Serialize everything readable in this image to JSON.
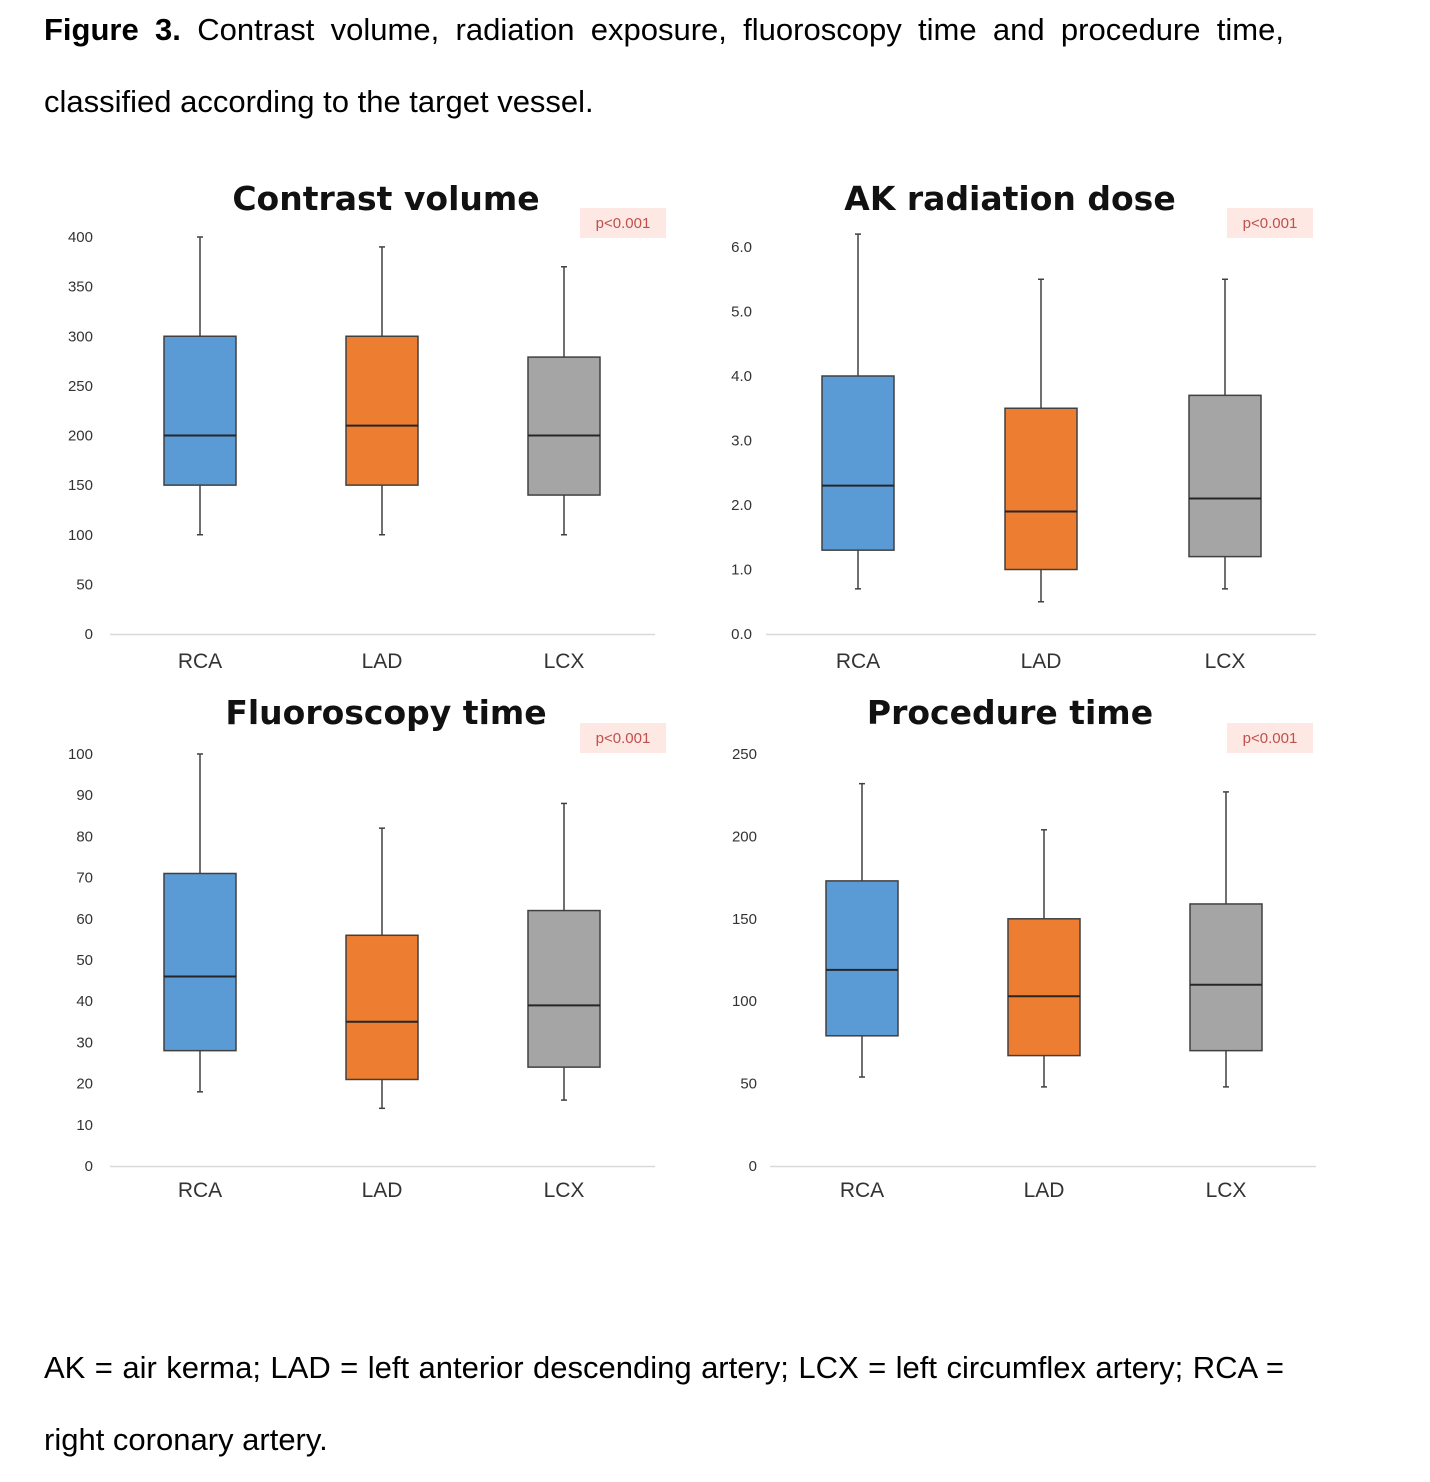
{
  "caption": {
    "label": "Figure 3.",
    "text": "Contrast volume, radiation exposure, fluoroscopy time and procedure time, classified according to the target vessel."
  },
  "footnote": "AK = air kerma; LAD = left anterior descending artery; LCX = left circumflex artery; RCA = right coronary artery.",
  "colors": {
    "RCA": "#5b9bd5",
    "LAD": "#ed7d31",
    "LCX": "#a5a5a5",
    "pbadge_bg": "#fde8e3",
    "pbadge_text": "#c0504d"
  },
  "chart_data": [
    {
      "type": "boxplot",
      "title": "Contrast volume",
      "p_value": "p<0.001",
      "categories": [
        "RCA",
        "LAD",
        "LCX"
      ],
      "ylim": [
        0,
        400
      ],
      "ticks": [
        "0",
        "50",
        "100",
        "150",
        "200",
        "250",
        "300",
        "350",
        "400"
      ],
      "boxes": [
        {
          "min": 100,
          "q1": 150,
          "median": 200,
          "q3": 300,
          "max": 400
        },
        {
          "min": 100,
          "q1": 150,
          "median": 210,
          "q3": 300,
          "max": 390
        },
        {
          "min": 100,
          "q1": 140,
          "median": 200,
          "q3": 279,
          "max": 370
        }
      ]
    },
    {
      "type": "boxplot",
      "title": "AK radiation dose",
      "p_value": "p<0.001",
      "categories": [
        "RCA",
        "LAD",
        "LCX"
      ],
      "ylim": [
        0,
        6
      ],
      "ticks": [
        "0.0",
        "1.0",
        "2.0",
        "3.0",
        "4.0",
        "5.0",
        "6.0"
      ],
      "boxes": [
        {
          "min": 0.7,
          "q1": 1.3,
          "median": 2.3,
          "q3": 4.0,
          "max": 6.2
        },
        {
          "min": 0.5,
          "q1": 1.0,
          "median": 1.9,
          "q3": 3.5,
          "max": 5.5
        },
        {
          "min": 0.7,
          "q1": 1.2,
          "median": 2.1,
          "q3": 3.7,
          "max": 5.5
        }
      ]
    },
    {
      "type": "boxplot",
      "title": "Fluoroscopy time",
      "p_value": "p<0.001",
      "categories": [
        "RCA",
        "LAD",
        "LCX"
      ],
      "ylim": [
        0,
        100
      ],
      "ticks": [
        "0",
        "10",
        "20",
        "30",
        "40",
        "50",
        "60",
        "70",
        "80",
        "90",
        "100"
      ],
      "boxes": [
        {
          "min": 18,
          "q1": 28,
          "median": 46,
          "q3": 71,
          "max": 100
        },
        {
          "min": 14,
          "q1": 21,
          "median": 35,
          "q3": 56,
          "max": 82
        },
        {
          "min": 16,
          "q1": 24,
          "median": 39,
          "q3": 62,
          "max": 88
        }
      ]
    },
    {
      "type": "boxplot",
      "title": "Procedure time",
      "p_value": "p<0.001",
      "categories": [
        "RCA",
        "LAD",
        "LCX"
      ],
      "ylim": [
        0,
        250
      ],
      "ticks": [
        "0",
        "50",
        "100",
        "150",
        "200",
        "250"
      ],
      "boxes": [
        {
          "min": 54,
          "q1": 79,
          "median": 119,
          "q3": 173,
          "max": 232
        },
        {
          "min": 48,
          "q1": 67,
          "median": 103,
          "q3": 150,
          "max": 204
        },
        {
          "min": 48,
          "q1": 70,
          "median": 110,
          "q3": 159,
          "max": 227
        }
      ]
    }
  ]
}
